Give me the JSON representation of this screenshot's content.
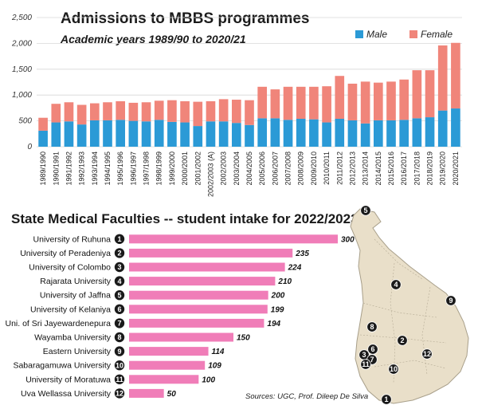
{
  "chart_data": [
    {
      "type": "bar",
      "stacked": true,
      "title": "Admissions to MBBS programmes",
      "subtitle": "Academic years 1989/90 to 2020/21",
      "xlabel": "",
      "ylabel": "",
      "ylim": [
        0,
        2500
      ],
      "yticks": [
        "0",
        "500",
        "1,000",
        "1,500",
        "2,000",
        "2,500"
      ],
      "grid": true,
      "legend_position": "top-right",
      "categories": [
        "1989/1990",
        "1990/1991",
        "1991/1992",
        "1992/1993",
        "1993/1994",
        "1994/1995",
        "1995/1996",
        "1996/1997",
        "1997/1998",
        "1998/1999",
        "1999/2000",
        "2000/2001",
        "2001/2002",
        "2002/2003 (A)",
        "2002/2003",
        "2003/2004",
        "2004/2005",
        "2005/2006",
        "2006/2007",
        "2007/2008",
        "2008/2009",
        "2009/2010",
        "2010/2011",
        "2011/2012",
        "2012/2013",
        "2013/2014",
        "2014/2015",
        "2015/2016",
        "2016/2017",
        "2017/2018",
        "2018/2019",
        "2019/2020",
        "2020/2021"
      ],
      "series": [
        {
          "name": "Male",
          "color": "#2b9ad6",
          "values": [
            310,
            470,
            490,
            430,
            510,
            510,
            520,
            500,
            490,
            520,
            480,
            470,
            400,
            490,
            490,
            460,
            420,
            550,
            550,
            520,
            540,
            530,
            470,
            540,
            510,
            450,
            510,
            510,
            520,
            550,
            570,
            700,
            740
          ]
        },
        {
          "name": "Female",
          "color": "#f0857a",
          "values": [
            250,
            360,
            370,
            380,
            330,
            350,
            360,
            350,
            370,
            370,
            420,
            410,
            470,
            390,
            430,
            450,
            480,
            610,
            560,
            640,
            620,
            630,
            700,
            830,
            710,
            810,
            730,
            750,
            780,
            930,
            910,
            1260,
            1270
          ]
        }
      ]
    },
    {
      "type": "bar",
      "orientation": "horizontal",
      "title": "State Medical Faculties -- student intake for 2022/2023",
      "xlim": [
        0,
        300
      ],
      "bar_color": "#f07db8",
      "categories": [
        "University of Ruhuna",
        "University of Peradeniya",
        "University of Colombo",
        "Rajarata University",
        "University of Jaffna",
        "University of Kelaniya",
        "Uni. of Sri Jayewardenepura",
        "Wayamba University",
        "Eastern University",
        "Sabaragamuwa University",
        "University of Moratuwa",
        "Uva Wellassa University"
      ],
      "ranks": [
        "1",
        "2",
        "3",
        "4",
        "5",
        "6",
        "7",
        "8",
        "9",
        "10",
        "11",
        "12"
      ],
      "values": [
        300,
        235,
        224,
        210,
        200,
        199,
        194,
        150,
        114,
        109,
        100,
        50
      ]
    }
  ],
  "map": {
    "markers": [
      "5",
      "4",
      "9",
      "8",
      "6",
      "3",
      "7",
      "11",
      "2",
      "12",
      "10",
      "1"
    ]
  },
  "source": "Sources: UGC, Prof. Dileep De Silva"
}
